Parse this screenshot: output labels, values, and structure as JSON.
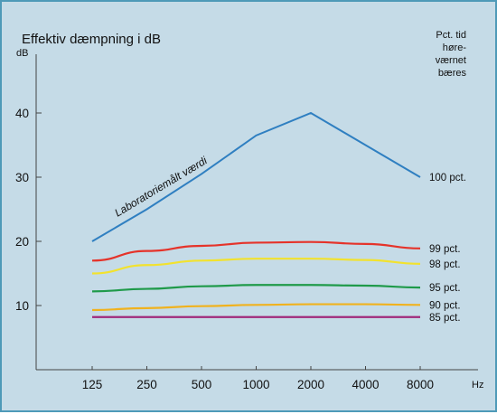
{
  "chart_data": {
    "type": "line",
    "title": "Effektiv dæmpning i dB",
    "ylabel": "dB",
    "xlabel": "Hz",
    "legend_title": [
      "Pct. tid",
      "høre-",
      "værnet",
      "bæres"
    ],
    "categories": [
      "125",
      "250",
      "500",
      "1000",
      "2000",
      "4000",
      "8000"
    ],
    "y_ticks": [
      "10",
      "20",
      "30",
      "40"
    ],
    "ylim": [
      0,
      50
    ],
    "grid": false,
    "annotation": "Laboratoriemålt værdi",
    "series": [
      {
        "name": "100 pct.",
        "values": [
          20,
          25,
          30.5,
          36.5,
          40,
          35,
          30
        ],
        "color": "#2f7fc1"
      },
      {
        "name": "99 pct.",
        "values": [
          17,
          18.5,
          19.3,
          19.8,
          19.9,
          19.6,
          18.9
        ],
        "color": "#e5332a"
      },
      {
        "name": "98 pct.",
        "values": [
          15,
          16.3,
          17,
          17.3,
          17.3,
          17.1,
          16.5
        ],
        "color": "#f2e22e"
      },
      {
        "name": "95 pct.",
        "values": [
          12.2,
          12.6,
          13,
          13.2,
          13.2,
          13.1,
          12.8
        ],
        "color": "#1f9a4a"
      },
      {
        "name": "90 pct.",
        "values": [
          9.3,
          9.6,
          9.9,
          10.1,
          10.2,
          10.2,
          10.1
        ],
        "color": "#f0b21e"
      },
      {
        "name": "85 pct.",
        "values": [
          8.2,
          8.2,
          8.2,
          8.2,
          8.2,
          8.2,
          8.2
        ],
        "color": "#a0287a"
      }
    ]
  }
}
